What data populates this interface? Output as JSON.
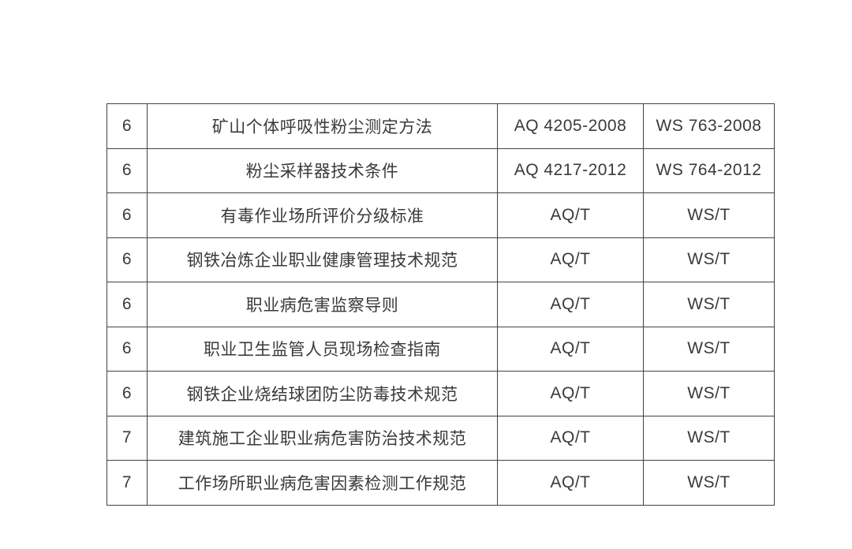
{
  "table": {
    "description": "standards-list-table",
    "columns": [
      "seq",
      "standard_name",
      "aq_code",
      "ws_code"
    ],
    "colors": {
      "border": "#424242",
      "text": "#3a3a3a",
      "background": "#ffffff"
    },
    "rows": [
      {
        "seq": "6",
        "name": "矿山个体呼吸性粉尘测定方法",
        "aq": "AQ 4205-2008",
        "ws": "WS 763-2008"
      },
      {
        "seq": "6",
        "name": "粉尘采样器技术条件",
        "aq": "AQ 4217-2012",
        "ws": "WS 764-2012"
      },
      {
        "seq": "6",
        "name": "有毒作业场所评价分级标准",
        "aq": "AQ/T",
        "ws": "WS/T"
      },
      {
        "seq": "6",
        "name": "钢铁冶炼企业职业健康管理技术规范",
        "aq": "AQ/T",
        "ws": "WS/T"
      },
      {
        "seq": "6",
        "name": "职业病危害监察导则",
        "aq": "AQ/T",
        "ws": "WS/T"
      },
      {
        "seq": "6",
        "name": "职业卫生监管人员现场检查指南",
        "aq": "AQ/T",
        "ws": "WS/T"
      },
      {
        "seq": "6",
        "name": "钢铁企业烧结球团防尘防毒技术规范",
        "aq": "AQ/T",
        "ws": "WS/T"
      },
      {
        "seq": "7",
        "name": "建筑施工企业职业病危害防治技术规范",
        "aq": "AQ/T",
        "ws": "WS/T"
      },
      {
        "seq": "7",
        "name": "工作场所职业病危害因素检测工作规范",
        "aq": "AQ/T",
        "ws": "WS/T"
      }
    ]
  }
}
